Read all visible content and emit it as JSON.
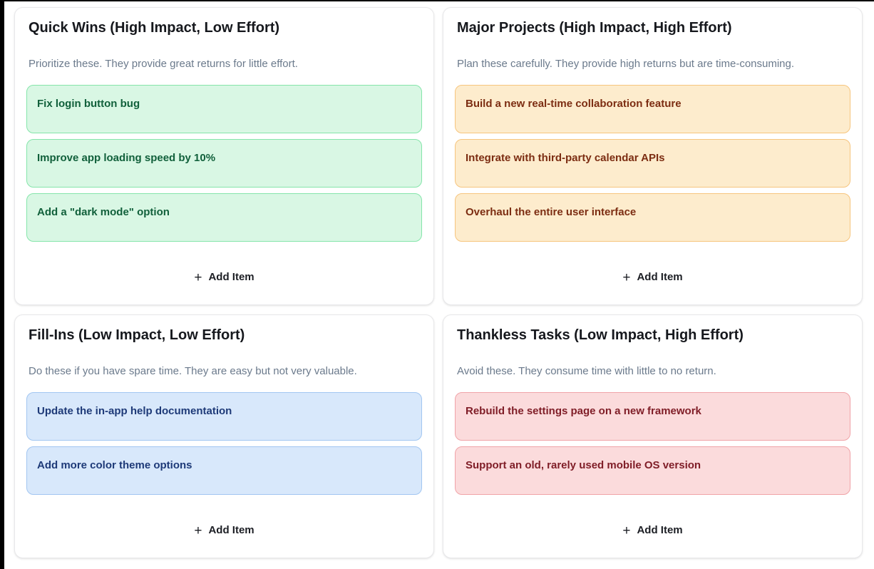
{
  "page": {
    "background": "#ffffff",
    "frame_color": "#000000"
  },
  "quadrants": [
    {
      "id": "quick-wins",
      "title": "Quick Wins (High Impact, Low Effort)",
      "description": "Prioritize these. They provide great returns for little effort.",
      "colors": {
        "tile_bg": "#d9f7e4",
        "tile_border": "#85e5aa",
        "tile_text": "#11603b"
      },
      "items": [
        "Fix login button bug",
        "Improve app loading speed by 10%",
        "Add a \"dark mode\" option"
      ],
      "add_button": {
        "icon": "+",
        "label": "Add Item"
      }
    },
    {
      "id": "major-projects",
      "title": "Major Projects (High Impact, High Effort)",
      "description": "Plan these carefully. They provide high returns but are time-consuming.",
      "colors": {
        "tile_bg": "#fdeccd",
        "tile_border": "#f6c57e",
        "tile_text": "#7c2d12"
      },
      "items": [
        "Build a new real-time collaboration feature",
        "Integrate with third-party calendar APIs",
        "Overhaul the entire user interface"
      ],
      "add_button": {
        "icon": "+",
        "label": "Add Item"
      }
    },
    {
      "id": "fill-ins",
      "title": "Fill-Ins (Low Impact, Low Effort)",
      "description": "Do these if you have spare time. They are easy but not very valuable.",
      "colors": {
        "tile_bg": "#d8e8fb",
        "tile_border": "#a2c6f1",
        "tile_text": "#1e3a78"
      },
      "items": [
        "Update the in-app help documentation",
        "Add more color theme options"
      ],
      "add_button": {
        "icon": "+",
        "label": "Add Item"
      }
    },
    {
      "id": "thankless-tasks",
      "title": "Thankless Tasks (Low Impact, High Effort)",
      "description": "Avoid these. They consume time with little to no return.",
      "colors": {
        "tile_bg": "#fbdbdc",
        "tile_border": "#f0a3a8",
        "tile_text": "#7f1d27"
      },
      "items": [
        "Rebuild the settings page on a new framework",
        "Support an old, rarely used mobile OS version"
      ],
      "add_button": {
        "icon": "+",
        "label": "Add Item"
      }
    }
  ]
}
